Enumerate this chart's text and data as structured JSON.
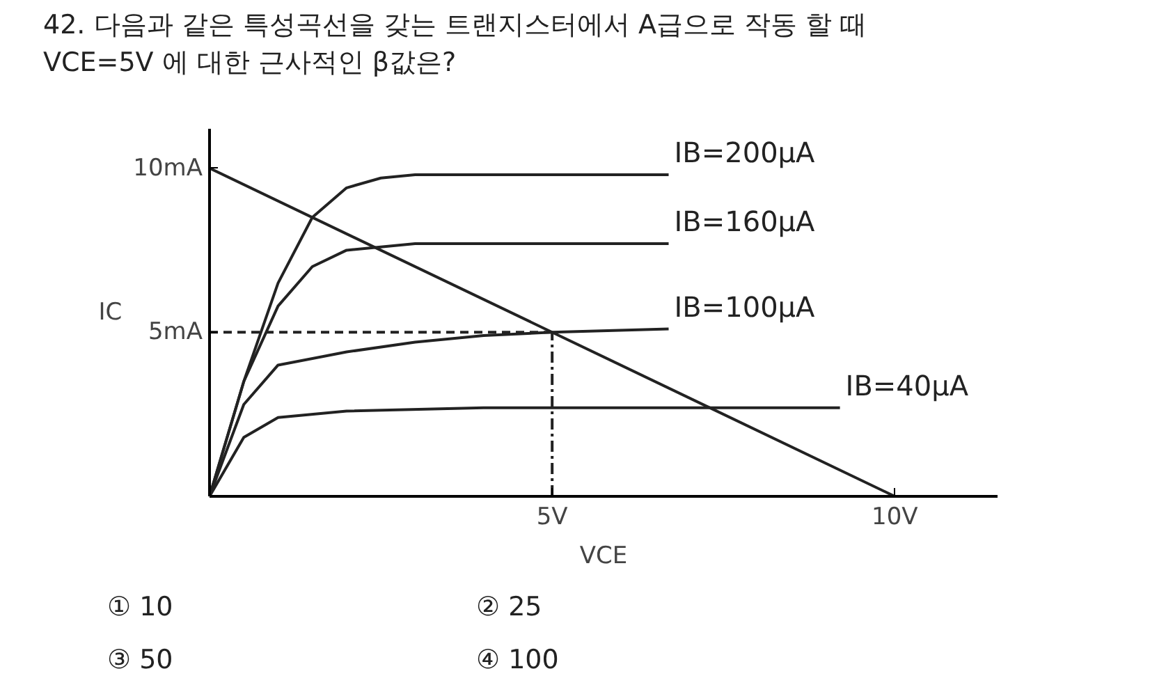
{
  "chart_data": {
    "type": "line",
    "title": "42. 다음과 같은 특성곡선을 갖는 트랜지스터에서 A급으로 작동 할 때 VCE=5V 에 대한 근사적인 β값은?",
    "xlabel": "VCE",
    "ylabel": "IC",
    "xlim": [
      0,
      11.5
    ],
    "ylim": [
      0,
      11.2
    ],
    "xticks": [
      {
        "value": 5,
        "label": "5V"
      },
      {
        "value": 10,
        "label": "10V"
      }
    ],
    "yticks": [
      {
        "value": 5,
        "label": "5mA"
      },
      {
        "value": 10,
        "label": "10mA"
      }
    ],
    "grid": false,
    "marker": "none",
    "series": [
      {
        "name": "IB=200µA",
        "color": "#222222",
        "x": [
          0,
          0.5,
          1,
          1.5,
          2,
          2.5,
          3,
          6.7
        ],
        "values": [
          0,
          3.5,
          6.5,
          8.5,
          9.4,
          9.7,
          9.8,
          9.8
        ]
      },
      {
        "name": "IB=160µA",
        "color": "#222222",
        "x": [
          0,
          0.5,
          1,
          1.5,
          2,
          3,
          6.7
        ],
        "values": [
          0,
          3.5,
          5.8,
          7,
          7.5,
          7.7,
          7.7
        ]
      },
      {
        "name": "IB=100µA",
        "color": "#222222",
        "x": [
          0,
          0.5,
          1,
          2,
          3,
          4,
          5,
          6.7
        ],
        "values": [
          0,
          2.8,
          4,
          4.4,
          4.7,
          4.9,
          5,
          5.1
        ]
      },
      {
        "name": "IB=40µA",
        "color": "#222222",
        "x": [
          0,
          0.5,
          1,
          2,
          4,
          9.2
        ],
        "values": [
          0,
          1.8,
          2.4,
          2.6,
          2.7,
          2.7
        ]
      },
      {
        "color": "#222222",
        "x": [
          0,
          10
        ],
        "values": [
          10,
          0
        ]
      },
      {
        "color": "#222222",
        "line_style": "dashed",
        "x": [
          0,
          5
        ],
        "values": [
          5,
          5
        ]
      },
      {
        "color": "#222222",
        "line_style": "dashdot",
        "x": [
          5,
          5
        ],
        "values": [
          0,
          5
        ]
      }
    ],
    "annotations": [
      "① 10",
      "② 25",
      "③ 50",
      "④ 100"
    ]
  }
}
